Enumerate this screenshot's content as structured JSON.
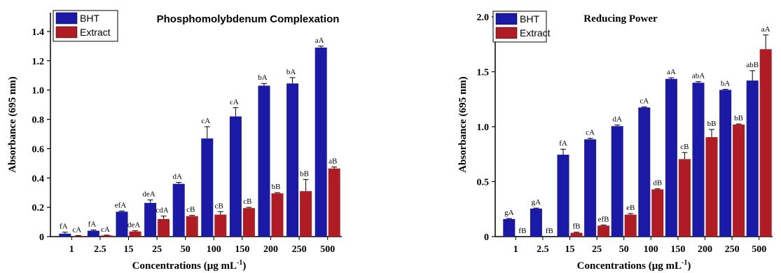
{
  "colors": {
    "bht": "#1a1aa6",
    "extract": "#b01c24",
    "axis": "#000000"
  },
  "chart_data": [
    {
      "type": "bar",
      "title": "Phosphomolybdenum Complexation",
      "xlabel": "Concentrations (μg mL",
      "xlabel_sup": "-1",
      "xlabel_end": ")",
      "ylabel": "Absorbance (695 nm)",
      "ylim": [
        0,
        1.5
      ],
      "yticks": [
        "0",
        "0.2",
        "0.4",
        "0.6",
        "0.8",
        "1.0",
        "1.2",
        "1.4"
      ],
      "ytick_values": [
        0,
        0.2,
        0.4,
        0.6,
        0.8,
        1.0,
        1.2,
        1.4
      ],
      "categories": [
        "1",
        "2.5",
        "15",
        "25",
        "50",
        "100",
        "150",
        "200",
        "250",
        "500"
      ],
      "legend_position": "top-left",
      "series": [
        {
          "name": "BHT",
          "values": [
            0.02,
            0.04,
            0.17,
            0.23,
            0.36,
            0.67,
            0.82,
            1.03,
            1.045,
            1.29
          ],
          "errors": [
            0.01,
            0.005,
            0.005,
            0.02,
            0.01,
            0.08,
            0.06,
            0.015,
            0.04,
            0.01
          ],
          "letters": [
            "fA",
            "fA",
            "efA",
            "deA",
            "dA",
            "cA",
            "cA",
            "bA",
            "bA",
            "aA"
          ]
        },
        {
          "name": "Extract",
          "values": [
            0.005,
            0.008,
            0.035,
            0.12,
            0.14,
            0.15,
            0.195,
            0.295,
            0.31,
            0.465
          ],
          "errors": [
            0.002,
            0.002,
            0.005,
            0.02,
            0.005,
            0.02,
            0.005,
            0.005,
            0.08,
            0.01
          ],
          "letters": [
            "cA",
            "cA",
            "deA",
            "cdA",
            "cB",
            "cB",
            "cB",
            "bB",
            "bB",
            "aB"
          ]
        }
      ]
    },
    {
      "type": "bar",
      "title": "Reducing Power",
      "xlabel": "Concentrations (μg mL",
      "xlabel_sup": "-1",
      "xlabel_end": ")",
      "ylabel": "Absorbance (695 nm)",
      "ylim": [
        0,
        2.0
      ],
      "yticks": [
        "0",
        "0.5",
        "1.0",
        "1.5",
        "2.0"
      ],
      "ytick_values": [
        0,
        0.5,
        1.0,
        1.5,
        2.0
      ],
      "categories": [
        "1",
        "2.5",
        "15",
        "25",
        "50",
        "100",
        "150",
        "200",
        "250",
        "500"
      ],
      "legend_position": "top-left",
      "series": [
        {
          "name": "BHT",
          "values": [
            0.16,
            0.255,
            0.745,
            0.885,
            1.005,
            1.175,
            1.435,
            1.4,
            1.335,
            1.42
          ],
          "errors": [
            0.005,
            0.005,
            0.05,
            0.01,
            0.01,
            0.005,
            0.01,
            0.01,
            0.005,
            0.09
          ],
          "letters": [
            "gA",
            "gA",
            "fA",
            "cA",
            "dA",
            "cA",
            "aA",
            "abA",
            "bA",
            "abB"
          ]
        },
        {
          "name": "Extract",
          "values": [
            0.0,
            0.0,
            0.035,
            0.1,
            0.2,
            0.43,
            0.705,
            0.905,
            1.02,
            1.705
          ],
          "errors": [
            0.0,
            0.0,
            0.005,
            0.005,
            0.01,
            0.005,
            0.06,
            0.07,
            0.005,
            0.13
          ],
          "letters": [
            "fB",
            "fB",
            "fB",
            "efB",
            "eB",
            "dB",
            "cB",
            "bB",
            "bB",
            "aA"
          ]
        }
      ]
    }
  ]
}
